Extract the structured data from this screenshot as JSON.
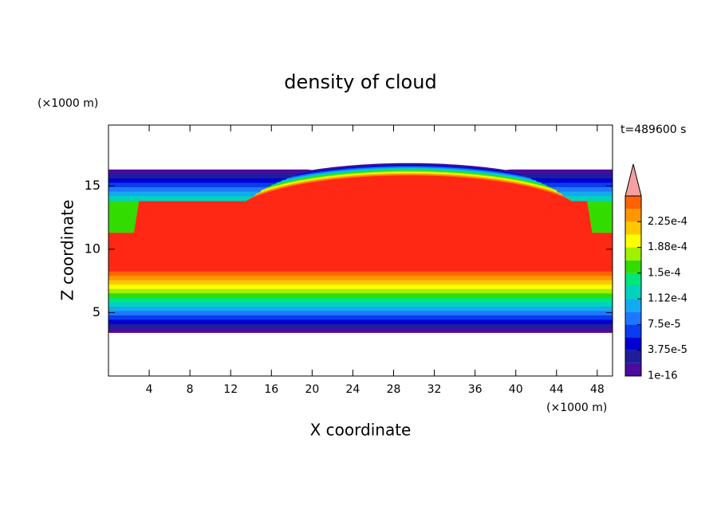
{
  "chart_data": {
    "type": "contour",
    "title": "density of cloud",
    "x_label": "X coordinate",
    "y_label": "Z coordinate",
    "x_unit": "(×1000 m)",
    "y_unit": "(×1000 m)",
    "annotation": "t=489600 s",
    "xlim": [
      0,
      49.5
    ],
    "ylim": [
      0,
      19.8
    ],
    "xticks": [
      4,
      8,
      12,
      16,
      20,
      24,
      28,
      32,
      36,
      40,
      44,
      48
    ],
    "yticks": [
      5,
      10,
      15
    ],
    "levels": [
      1e-16,
      1.875e-05,
      3.75e-05,
      5.625e-05,
      7.5e-05,
      9.375e-05,
      0.0001125,
      0.00013125,
      0.00015,
      0.00016875,
      0.0001875,
      0.00020625,
      0.000225,
      0.00024375
    ],
    "colors": [
      "#4b0aa0",
      "#1e1e9b",
      "#0000d2",
      "#0a3cf0",
      "#1e78ff",
      "#14aaf0",
      "#00d2be",
      "#00e678",
      "#32dc00",
      "#a0f000",
      "#ffff00",
      "#ffc800",
      "#ff9600",
      "#ff6400"
    ],
    "top_color": "#ff2814",
    "extend_color": "#f4a0a0",
    "colorbar_ticks": [
      {
        "value": 1e-16,
        "label": "1e-16"
      },
      {
        "value": 3.75e-05,
        "label": "3.75e-5"
      },
      {
        "value": 7.5e-05,
        "label": "7.5e-5"
      },
      {
        "value": 0.0001125,
        "label": "1.12e-4"
      },
      {
        "value": 0.00015,
        "label": "1.5e-4"
      },
      {
        "value": 0.0001875,
        "label": "1.88e-4"
      },
      {
        "value": 0.000225,
        "label": "2.25e-4"
      }
    ]
  }
}
